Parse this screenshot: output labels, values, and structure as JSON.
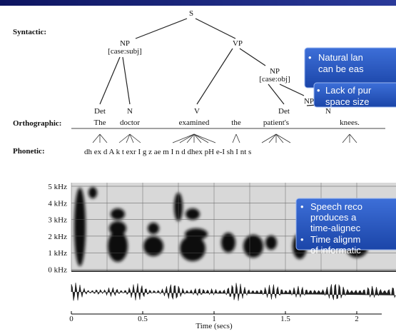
{
  "labels": {
    "syntactic": "Syntactic:",
    "orthographic": "Orthographic:",
    "phonetic": "Phonetic:"
  },
  "tree": {
    "nodes": [
      "S",
      "NP",
      "[case:subj]",
      "VP",
      "NP",
      "[case:obj]",
      "NP",
      "Det",
      "N",
      "V",
      "Det",
      "N"
    ]
  },
  "words": [
    "The",
    "doctor",
    "examined",
    "the",
    "patient's",
    "knees."
  ],
  "phones": "dh ex d   A  k  t  exr I   g z   ae   m  I  n  d dhex pH e-I  sh  I   nt s",
  "spectrogram": {
    "freq_labels": [
      "5 kHz",
      "4 kHz",
      "3 kHz",
      "2 kHz",
      "1 kHz",
      "0 kHz"
    ],
    "time_labels": [
      "0",
      "0.5",
      "1",
      "1.5",
      "2"
    ],
    "time_axis_label": "Time (secs)"
  },
  "callouts": [
    {
      "lines": [
        "Natural lan",
        "can be eas"
      ]
    },
    {
      "lines": [
        "Lack of pur",
        "space size"
      ]
    },
    {
      "lines": [
        "Speech reco",
        "produces a",
        "time-alignec"
      ]
    },
    {
      "lines": [
        "Time alignm",
        "of informatic"
      ]
    }
  ]
}
